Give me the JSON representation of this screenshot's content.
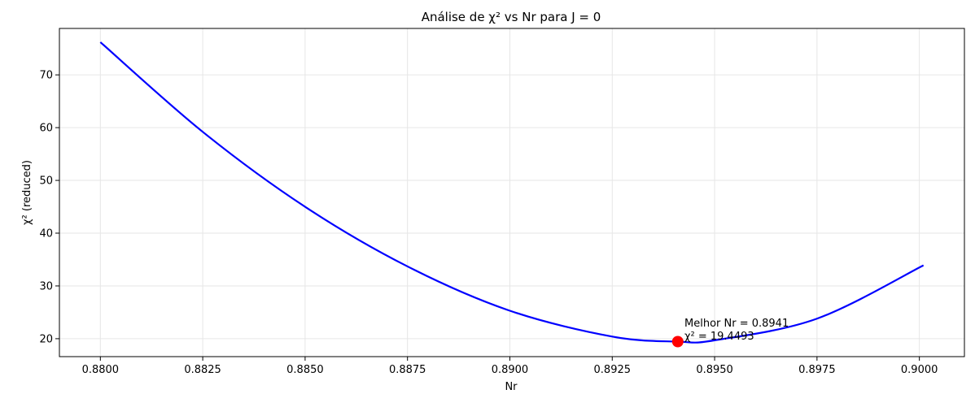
{
  "chart_data": {
    "type": "line",
    "title": "Análise de χ² vs Nr para J = 0",
    "xlabel": "Nr",
    "ylabel": "χ² (reduced)",
    "xlim": [
      0.879,
      0.9011
    ],
    "ylim": [
      16.6,
      78.8
    ],
    "grid": true,
    "x_ticks": [
      0.88,
      0.8825,
      0.885,
      0.8875,
      0.89,
      0.8925,
      0.895,
      0.8975,
      0.9
    ],
    "x_tick_labels": [
      "0.8800",
      "0.8825",
      "0.8850",
      "0.8875",
      "0.8900",
      "0.8925",
      "0.8950",
      "0.8975",
      "0.9000"
    ],
    "y_ticks": [
      20,
      30,
      40,
      50,
      60,
      70
    ],
    "y_tick_labels": [
      "20",
      "30",
      "40",
      "50",
      "60",
      "70"
    ],
    "series": [
      {
        "color": "#0000ff",
        "x": [
          0.88,
          0.8825,
          0.885,
          0.8875,
          0.89,
          0.8925,
          0.8941,
          0.895,
          0.8975,
          0.9001
        ],
        "y": [
          76.2,
          59.2,
          45.0,
          33.7,
          25.3,
          20.4,
          19.45,
          19.7,
          23.8,
          33.9
        ]
      }
    ],
    "highlight": {
      "x": 0.8941,
      "y": 19.4493,
      "color": "#ff0000",
      "label_line1": "Melhor Nr = 0.8941",
      "label_line2": "χ² = 19.4493"
    }
  }
}
